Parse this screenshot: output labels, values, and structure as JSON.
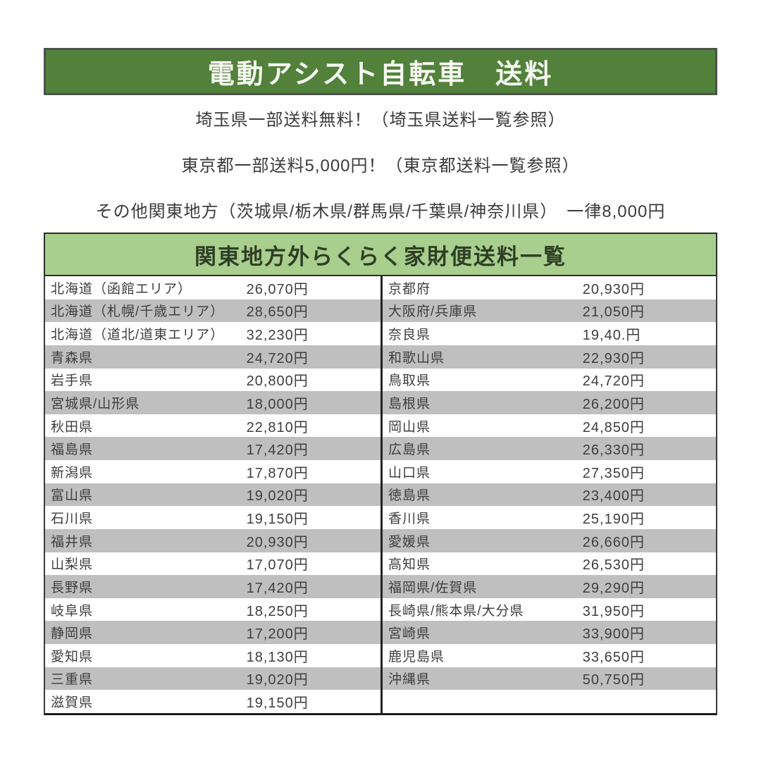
{
  "header": {
    "title": "電動アシスト自転車　送料"
  },
  "notices": [
    "埼玉県一部送料無料！（埼玉県送料一覧参照）",
    "東京都一部送料5,000円！（東京都送料一覧参照）",
    "その他関東地方（茨城県/栃木県/群馬県/千葉県/神奈川県）　一律8,000円"
  ],
  "table": {
    "title": "関東地方外らくらく家財便送料一覧",
    "left_rows": [
      {
        "region": "北海道（函館エリア）",
        "price": "26,070円"
      },
      {
        "region": "北海道（札幌/千歳エリア）",
        "price": "28,650円"
      },
      {
        "region": "北海道（道北/道東エリア）",
        "price": "32,230円"
      },
      {
        "region": "青森県",
        "price": "24,720円"
      },
      {
        "region": "岩手県",
        "price": "20,800円"
      },
      {
        "region": "宮城県/山形県",
        "price": "18,000円"
      },
      {
        "region": "秋田県",
        "price": "22,810円"
      },
      {
        "region": "福島県",
        "price": "17,420円"
      },
      {
        "region": "新潟県",
        "price": "17,870円"
      },
      {
        "region": "富山県",
        "price": "19,020円"
      },
      {
        "region": "石川県",
        "price": "19,150円"
      },
      {
        "region": "福井県",
        "price": "20,930円"
      },
      {
        "region": "山梨県",
        "price": "17,070円"
      },
      {
        "region": "長野県",
        "price": "17,420円"
      },
      {
        "region": "岐阜県",
        "price": "18,250円"
      },
      {
        "region": "静岡県",
        "price": "17,200円"
      },
      {
        "region": "愛知県",
        "price": "18,130円"
      },
      {
        "region": "三重県",
        "price": "19,020円"
      },
      {
        "region": "滋賀県",
        "price": "19,150円"
      }
    ],
    "right_rows": [
      {
        "region": "京都府",
        "price": "20,930円"
      },
      {
        "region": "大阪府/兵庫県",
        "price": "21,050円"
      },
      {
        "region": "奈良県",
        "price": "19,40.円"
      },
      {
        "region": "和歌山県",
        "price": "22,930円"
      },
      {
        "region": "鳥取県",
        "price": "24,720円"
      },
      {
        "region": "島根県",
        "price": "26,200円"
      },
      {
        "region": "岡山県",
        "price": "24,850円"
      },
      {
        "region": "広島県",
        "price": "26,330円"
      },
      {
        "region": "山口県",
        "price": "27,350円"
      },
      {
        "region": "徳島県",
        "price": "23,400円"
      },
      {
        "region": "香川県",
        "price": "25,190円"
      },
      {
        "region": "愛媛県",
        "price": "26,660円"
      },
      {
        "region": "高知県",
        "price": "26,530円"
      },
      {
        "region": "福岡県/佐賀県",
        "price": "29,290円"
      },
      {
        "region": "長崎県/熊本県/大分県",
        "price": "31,950円"
      },
      {
        "region": "宮崎県",
        "price": "33,900円"
      },
      {
        "region": "鹿児島県",
        "price": "33,650円"
      },
      {
        "region": "沖縄県",
        "price": "50,750円"
      },
      {
        "region": "",
        "price": ""
      }
    ]
  },
  "colors": {
    "header_green": "#51813a",
    "subheader_green": "#a8cf8d",
    "row_gray": "#bfbfbf",
    "border_dark": "#3a3a3a",
    "title_text": "#f6f8f2",
    "body_text": "#3e3e3e"
  }
}
